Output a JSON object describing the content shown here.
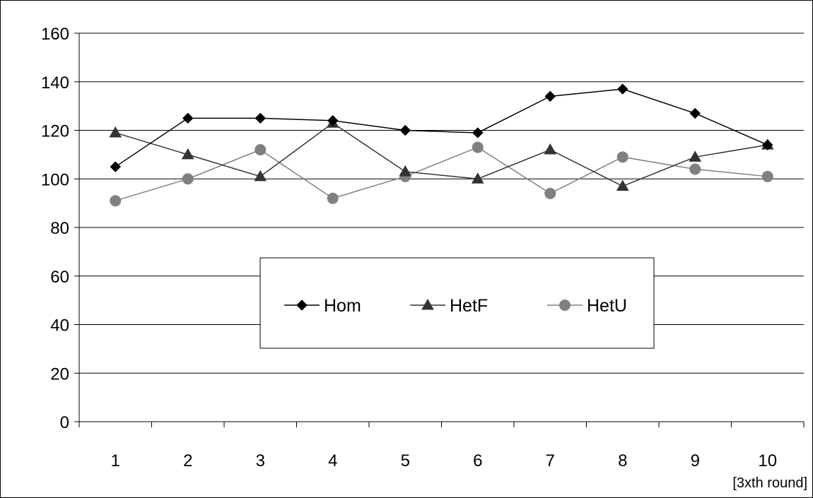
{
  "chart_data": {
    "type": "line",
    "categories": [
      "1",
      "2",
      "3",
      "4",
      "5",
      "6",
      "7",
      "8",
      "9",
      "10"
    ],
    "x_unit_label": "[3xth round]",
    "ylim": [
      0,
      160
    ],
    "yticks": [
      0,
      20,
      40,
      60,
      80,
      100,
      120,
      140,
      160
    ],
    "grid": "horizontal",
    "legend_position": "center",
    "series": [
      {
        "name": "Hom",
        "marker": "diamond",
        "color": "#000000",
        "values": [
          105,
          125,
          125,
          124,
          120,
          119,
          134,
          137,
          127,
          114
        ]
      },
      {
        "name": "HetF",
        "marker": "triangle",
        "color": "#333333",
        "values": [
          119,
          110,
          101,
          123,
          103,
          100,
          112,
          97,
          109,
          114
        ]
      },
      {
        "name": "HetU",
        "marker": "circle",
        "color": "#808080",
        "values": [
          91,
          100,
          112,
          92,
          101,
          113,
          94,
          109,
          104,
          101
        ]
      }
    ]
  }
}
